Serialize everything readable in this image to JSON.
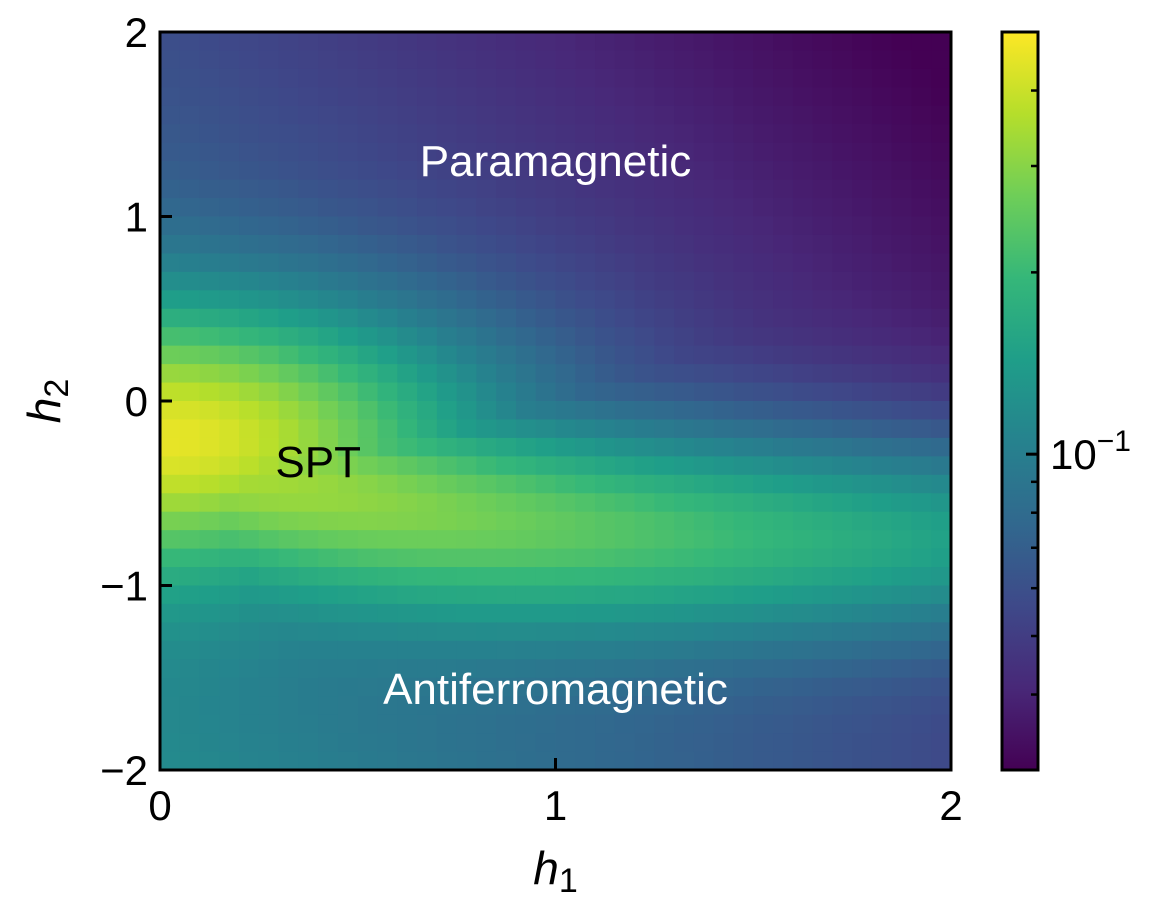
{
  "chart_data": {
    "type": "heatmap",
    "title": "",
    "xlabel": "h",
    "xlabel_sub": "1",
    "ylabel": "h",
    "ylabel_sub": "2",
    "xlim": [
      0,
      2
    ],
    "ylim": [
      -2,
      2
    ],
    "grid": false,
    "x_ticks": [
      {
        "value": 0,
        "label": "0"
      },
      {
        "value": 1,
        "label": "1"
      },
      {
        "value": 2,
        "label": "2"
      }
    ],
    "y_ticks": [
      {
        "value": 2,
        "label": "2"
      },
      {
        "value": 1,
        "label": "1"
      },
      {
        "value": 0,
        "label": "0"
      },
      {
        "value": -1,
        "label": "−1"
      },
      {
        "value": -2,
        "label": "−2"
      }
    ],
    "grid_shape": {
      "nx": 40,
      "ny": 40
    },
    "colormap": "viridis",
    "colormap_stops": [
      "#440154",
      "#482878",
      "#3e4989",
      "#31688e",
      "#26828e",
      "#1f9e89",
      "#35b779",
      "#6ece58",
      "#b5de2b",
      "#fde725"
    ],
    "colorbar": {
      "scale": "log",
      "range": [
        0.03,
        0.5
      ],
      "major_ticks": [
        {
          "value": 0.1,
          "base": "10",
          "exponent": "−1"
        }
      ],
      "minor_ticks": [
        0.04,
        0.05,
        0.06,
        0.07,
        0.08,
        0.09,
        0.2,
        0.3,
        0.4
      ]
    },
    "annotations": [
      {
        "text": "Paramagnetic",
        "x": 1.0,
        "y": 1.3,
        "color": "#ffffff"
      },
      {
        "text": "SPT",
        "x": 0.4,
        "y": -0.33,
        "color": "#000000"
      },
      {
        "text": "Antiferromagnetic",
        "x": 1.0,
        "y": -1.56,
        "color": "#ffffff"
      }
    ],
    "field_profile": {
      "peak_value": 0.5,
      "peak_location": {
        "h1": 0.0,
        "h2": -0.2
      },
      "max_at_corner": {
        "h1": 2.0,
        "h2": 2.0,
        "value": 0.03
      },
      "min_at_corner": {
        "h1": 2.0,
        "h2": -2.0,
        "value": 0.05
      }
    }
  }
}
